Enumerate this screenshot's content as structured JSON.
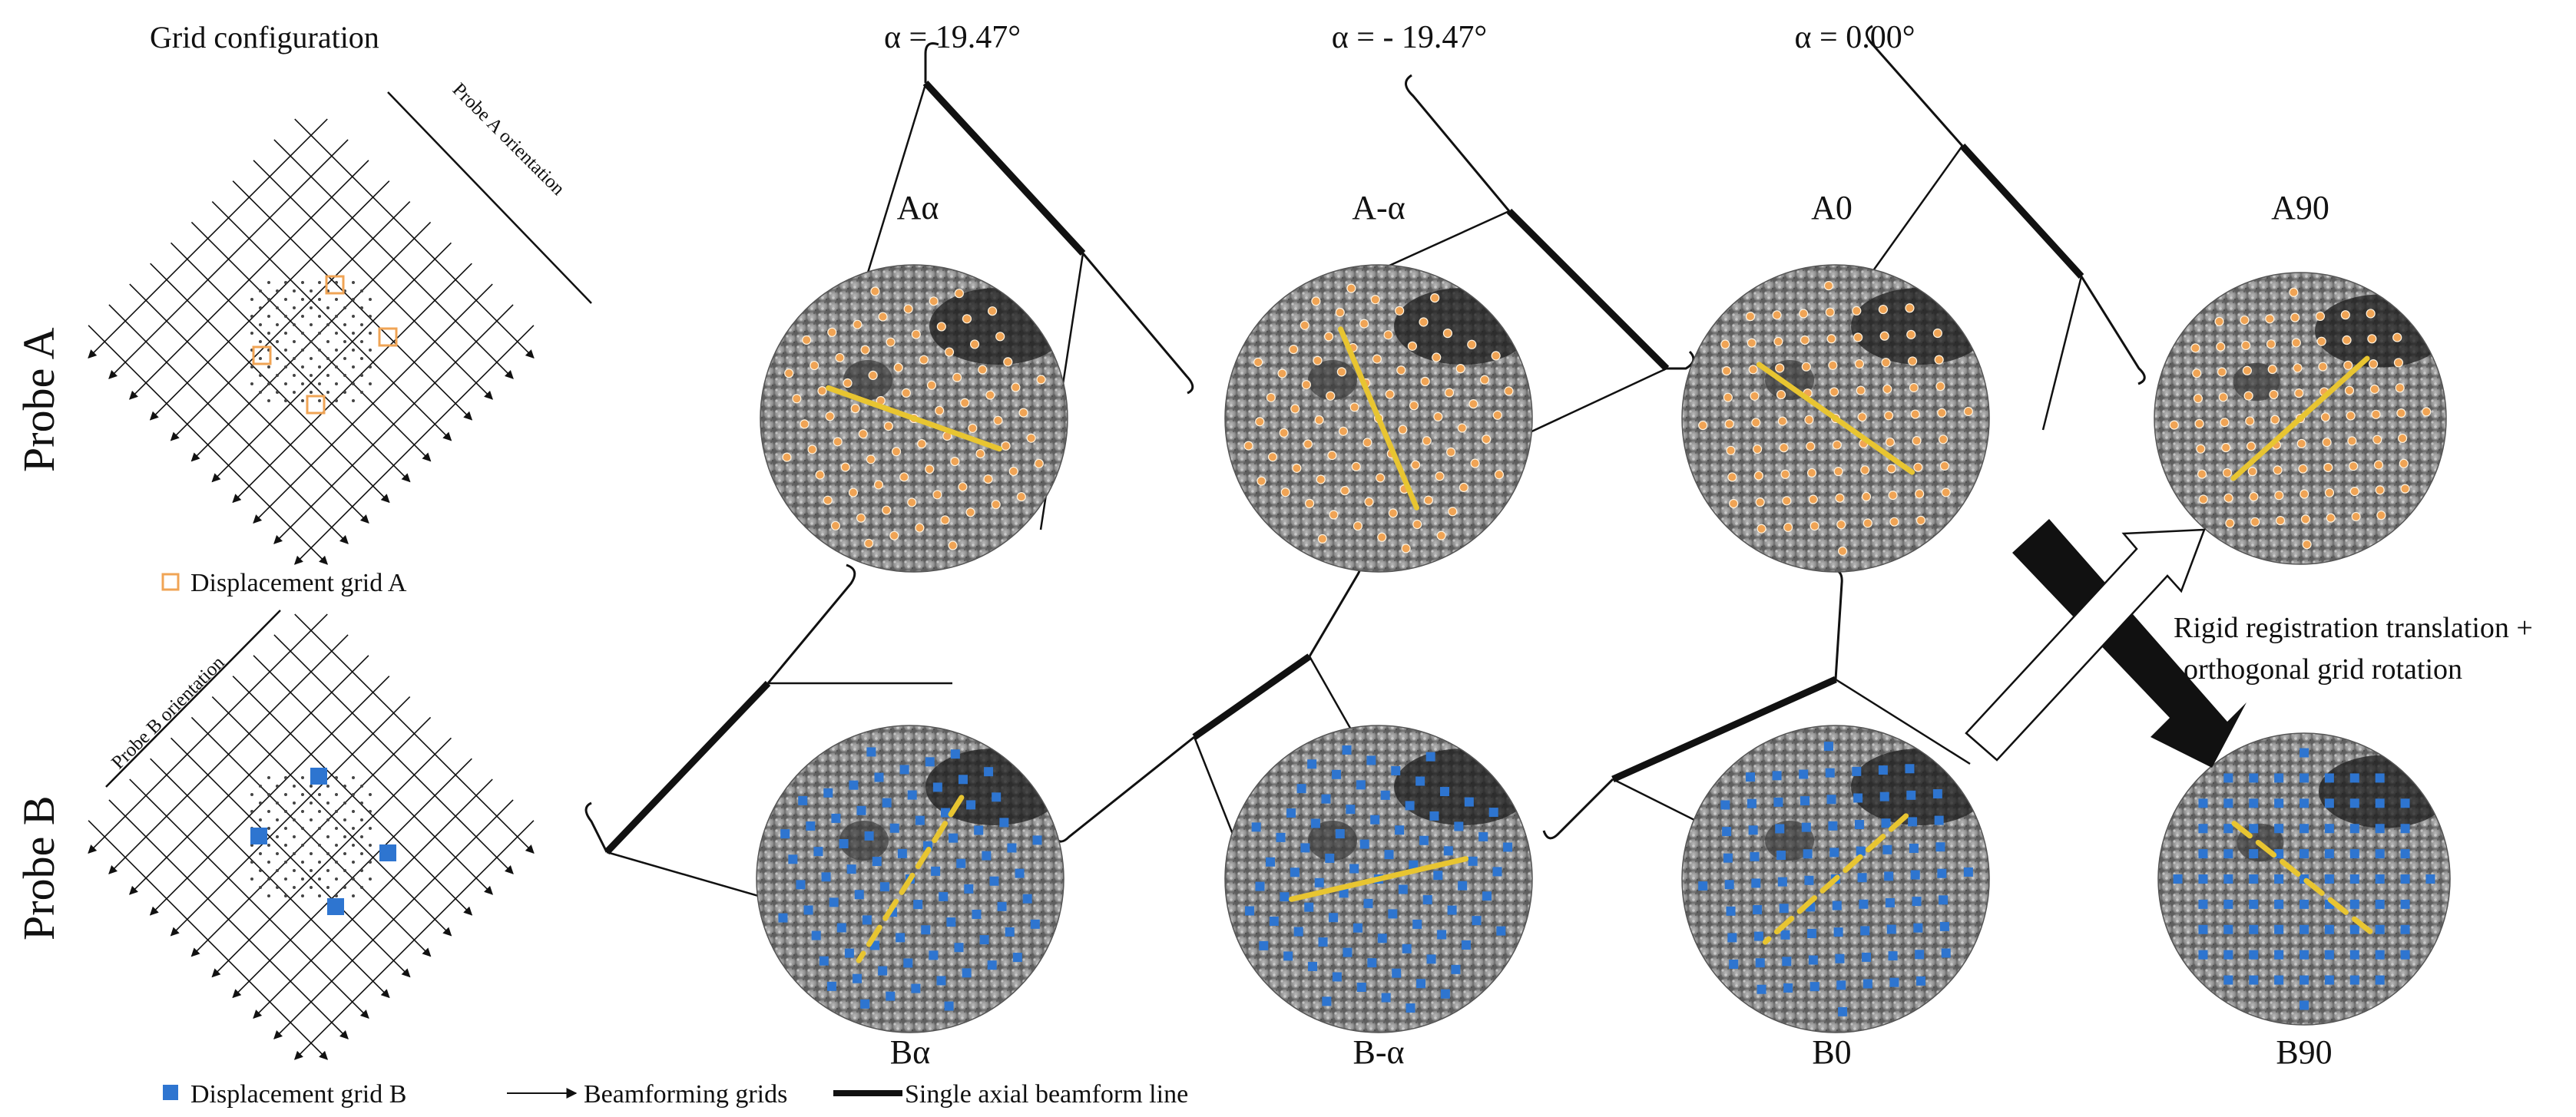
{
  "grid_configuration": {
    "title": "Grid configuration",
    "probe_a_label": "Probe A",
    "probe_b_label": "Probe B",
    "probe_a_orientation": "Probe A orientation",
    "probe_b_orientation": "Probe B orientation"
  },
  "angles": [
    {
      "id": "alpha_pos",
      "label": "α = 19.47°"
    },
    {
      "id": "alpha_neg",
      "label": "α = - 19.47°"
    },
    {
      "id": "alpha_zero",
      "label": "α = 0.00°"
    }
  ],
  "panels": {
    "a_alpha": "Aα",
    "a_neg_alpha": "A-α",
    "a_zero": "A0",
    "a_ninety": "A90",
    "b_alpha": "Bα",
    "b_neg_alpha": "B-α",
    "b_zero": "B0",
    "b_ninety": "B90"
  },
  "registration": {
    "line1": "Rigid registration translation +",
    "line2": "orthogonal grid rotation"
  },
  "legend": {
    "grid_a": "Displacement grid A",
    "grid_b": "Displacement grid B",
    "beamforming": "Beamforming grids",
    "axial_line": "Single axial beamform line"
  },
  "colors": {
    "grid_a": "#f0a455",
    "grid_b": "#2e75d0",
    "axial_line": "#e8c531",
    "ink": "#111111"
  }
}
